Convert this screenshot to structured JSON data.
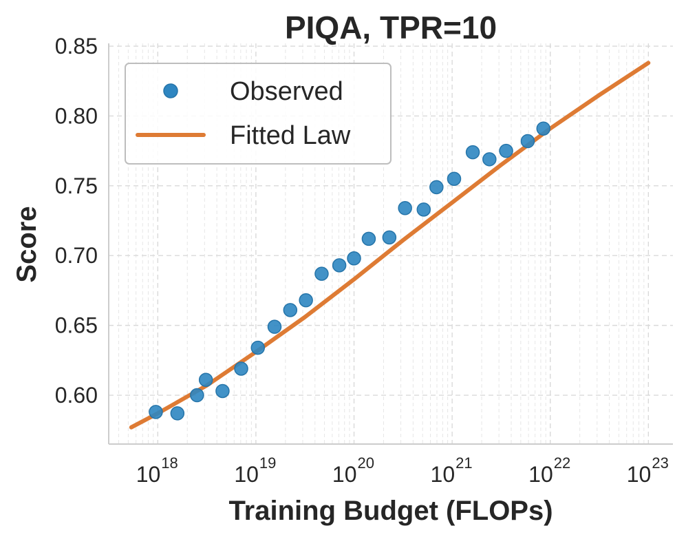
{
  "chart_data": {
    "type": "scatter",
    "title": "PIQA, TPR=10",
    "xlabel": "Training Budget (FLOPs)",
    "ylabel": "Score",
    "xscale": "log",
    "xlim_exp": [
      17.5,
      23.25
    ],
    "ylim": [
      0.565,
      0.852
    ],
    "grid": true,
    "legend_position": "top-left",
    "yticks": [
      0.6,
      0.65,
      0.7,
      0.75,
      0.8,
      0.85
    ],
    "ytick_labels": [
      "0.60",
      "0.65",
      "0.70",
      "0.75",
      "0.80",
      "0.85"
    ],
    "xticks_exp": [
      18,
      19,
      20,
      21,
      22,
      23
    ],
    "xtick_base": "10",
    "xtick_exp_labels": [
      "18",
      "19",
      "20",
      "21",
      "22",
      "23"
    ],
    "series": [
      {
        "name": "Observed",
        "kind": "scatter",
        "color": "#2e86c1",
        "points": [
          [
            17.98,
            0.588
          ],
          [
            18.2,
            0.587
          ],
          [
            18.4,
            0.6
          ],
          [
            18.49,
            0.611
          ],
          [
            18.66,
            0.603
          ],
          [
            18.85,
            0.619
          ],
          [
            19.02,
            0.634
          ],
          [
            19.19,
            0.649
          ],
          [
            19.35,
            0.661
          ],
          [
            19.51,
            0.668
          ],
          [
            19.67,
            0.687
          ],
          [
            19.85,
            0.693
          ],
          [
            20.0,
            0.698
          ],
          [
            20.15,
            0.712
          ],
          [
            20.36,
            0.713
          ],
          [
            20.52,
            0.734
          ],
          [
            20.71,
            0.733
          ],
          [
            20.84,
            0.749
          ],
          [
            21.02,
            0.755
          ],
          [
            21.21,
            0.774
          ],
          [
            21.38,
            0.769
          ],
          [
            21.55,
            0.775
          ],
          [
            21.77,
            0.782
          ],
          [
            21.93,
            0.791
          ]
        ]
      },
      {
        "name": "Fitted Law",
        "kind": "line",
        "color": "#de7b34",
        "points": [
          [
            17.73,
            0.577
          ],
          [
            18.0,
            0.587
          ],
          [
            18.5,
            0.607
          ],
          [
            19.0,
            0.631
          ],
          [
            19.5,
            0.656
          ],
          [
            20.0,
            0.683
          ],
          [
            20.5,
            0.711
          ],
          [
            21.0,
            0.738
          ],
          [
            21.5,
            0.765
          ],
          [
            22.0,
            0.791
          ],
          [
            22.5,
            0.815
          ],
          [
            23.0,
            0.838
          ]
        ]
      }
    ]
  }
}
